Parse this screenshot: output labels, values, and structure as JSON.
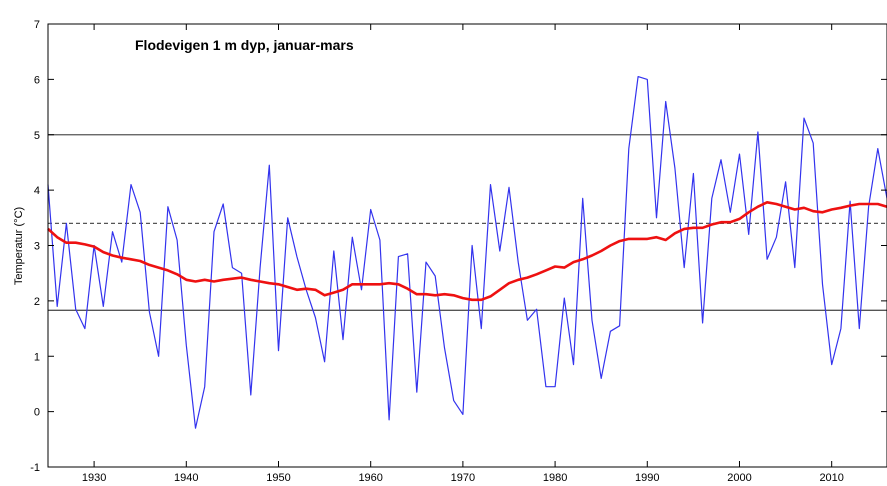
{
  "chart_data": {
    "type": "line",
    "title": "Flodevigen 1 m dyp, januar-mars",
    "xlabel": "",
    "ylabel": "Temperatur (°C)",
    "xlim": [
      1925,
      2016
    ],
    "ylim": [
      -1,
      7
    ],
    "xticks": [
      1930,
      1940,
      1950,
      1960,
      1970,
      1980,
      1990,
      2000,
      2010
    ],
    "yticks": [
      -1,
      0,
      1,
      2,
      3,
      4,
      5,
      6,
      7
    ],
    "grid": false,
    "colors": {
      "annual": "#3333ee",
      "smooth": "#ee1111",
      "reference": "#555555"
    },
    "reference_lines": [
      {
        "y": 5.0,
        "style": "solid"
      },
      {
        "y": 3.4,
        "style": "dashed"
      },
      {
        "y": 1.83,
        "style": "solid"
      }
    ],
    "x": [
      1925,
      1926,
      1927,
      1928,
      1929,
      1930,
      1931,
      1932,
      1933,
      1934,
      1935,
      1936,
      1937,
      1938,
      1939,
      1940,
      1941,
      1942,
      1943,
      1944,
      1945,
      1946,
      1947,
      1948,
      1949,
      1950,
      1951,
      1952,
      1953,
      1954,
      1955,
      1956,
      1957,
      1958,
      1959,
      1960,
      1961,
      1962,
      1963,
      1964,
      1965,
      1966,
      1967,
      1968,
      1969,
      1970,
      1971,
      1972,
      1973,
      1974,
      1975,
      1976,
      1977,
      1978,
      1979,
      1980,
      1981,
      1982,
      1983,
      1984,
      1985,
      1986,
      1987,
      1988,
      1989,
      1990,
      1991,
      1992,
      1993,
      1994,
      1995,
      1996,
      1997,
      1998,
      1999,
      2000,
      2001,
      2002,
      2003,
      2004,
      2005,
      2006,
      2007,
      2008,
      2009,
      2010,
      2011,
      2012,
      2013,
      2014,
      2015,
      2016
    ],
    "series": [
      {
        "values": [
          4.1,
          1.9,
          3.4,
          1.85,
          1.5,
          3.0,
          1.9,
          3.25,
          2.7,
          4.1,
          3.6,
          1.8,
          1.0,
          3.7,
          3.1,
          1.2,
          -0.3,
          0.45,
          3.25,
          3.75,
          2.6,
          2.5,
          0.3,
          2.6,
          4.45,
          1.1,
          3.5,
          2.8,
          2.2,
          1.7,
          0.9,
          2.9,
          1.3,
          3.15,
          2.2,
          3.65,
          3.1,
          -0.15,
          2.8,
          2.85,
          0.35,
          2.7,
          2.45,
          1.15,
          0.2,
          -0.05,
          3.0,
          1.5,
          4.1,
          2.9,
          4.05,
          2.7,
          1.65,
          1.85,
          0.45,
          0.45,
          2.05,
          0.85,
          3.85,
          1.65,
          0.6,
          1.45,
          1.55,
          4.75,
          6.05,
          6.0,
          3.5,
          5.6,
          4.4,
          2.6,
          4.3,
          1.6,
          3.85,
          4.55,
          3.6,
          4.65,
          3.2,
          5.05,
          2.75,
          3.15,
          4.15,
          2.6,
          5.3,
          4.85,
          2.3,
          0.85,
          1.5,
          3.8,
          1.5,
          3.7,
          4.75,
          3.85
        ]
      },
      {
        "values": [
          3.3,
          3.15,
          3.05,
          3.05,
          3.02,
          2.98,
          2.88,
          2.82,
          2.78,
          2.75,
          2.72,
          2.65,
          2.6,
          2.55,
          2.48,
          2.38,
          2.35,
          2.38,
          2.35,
          2.38,
          2.4,
          2.42,
          2.38,
          2.35,
          2.32,
          2.3,
          2.25,
          2.2,
          2.22,
          2.2,
          2.1,
          2.15,
          2.2,
          2.3,
          2.3,
          2.3,
          2.3,
          2.32,
          2.3,
          2.22,
          2.12,
          2.12,
          2.1,
          2.12,
          2.1,
          2.05,
          2.02,
          2.02,
          2.08,
          2.2,
          2.32,
          2.38,
          2.42,
          2.48,
          2.55,
          2.62,
          2.6,
          2.7,
          2.75,
          2.82,
          2.9,
          3.0,
          3.08,
          3.12,
          3.12,
          3.12,
          3.15,
          3.1,
          3.22,
          3.3,
          3.32,
          3.32,
          3.38,
          3.42,
          3.42,
          3.48,
          3.6,
          3.7,
          3.78,
          3.75,
          3.7,
          3.65,
          3.68,
          3.62,
          3.6,
          3.65,
          3.68,
          3.72,
          3.75,
          3.75,
          3.75,
          3.7
        ]
      }
    ]
  }
}
